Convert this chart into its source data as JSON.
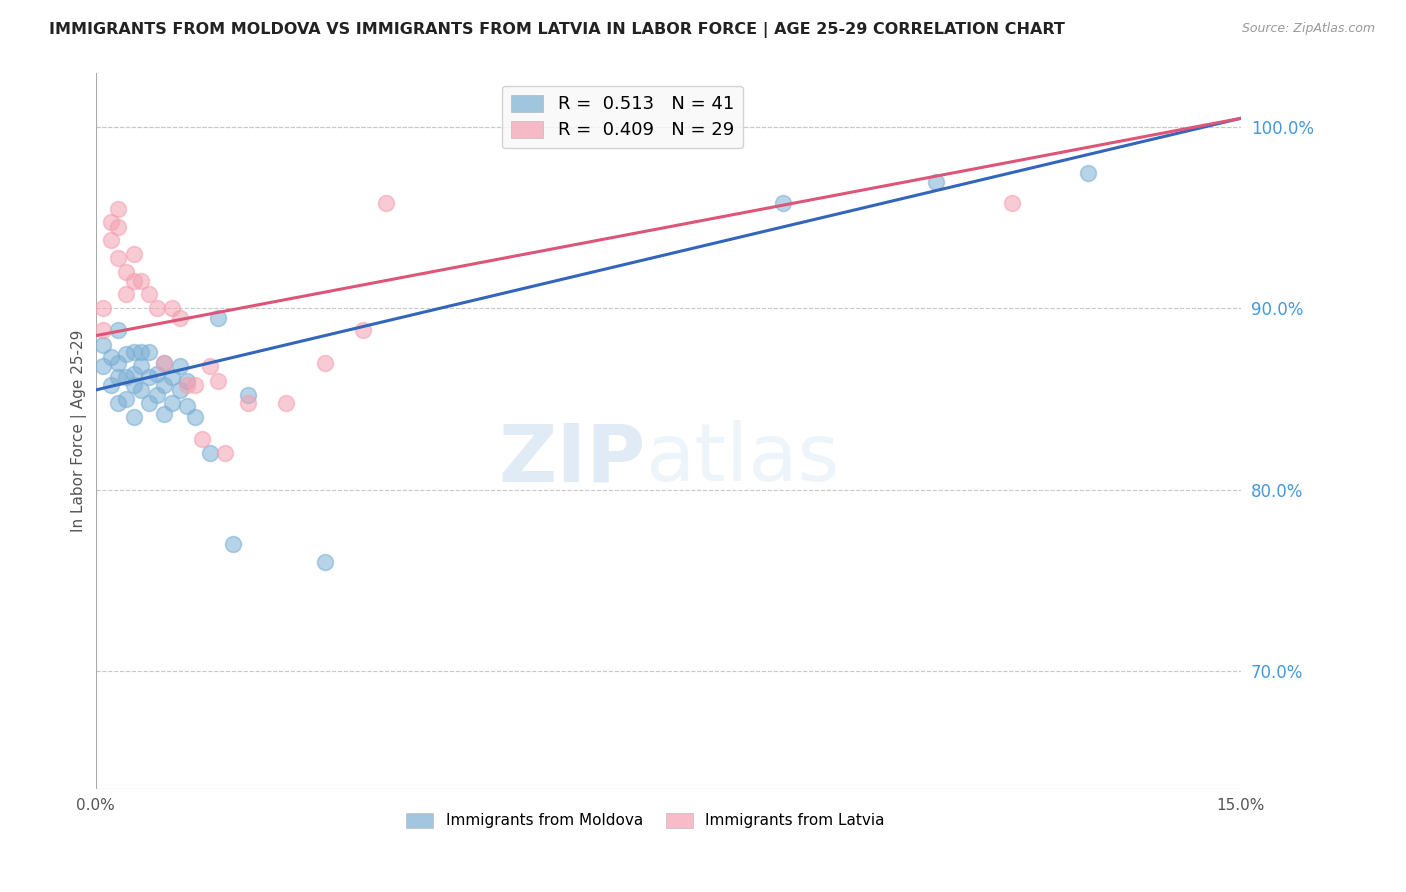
{
  "title": "IMMIGRANTS FROM MOLDOVA VS IMMIGRANTS FROM LATVIA IN LABOR FORCE | AGE 25-29 CORRELATION CHART",
  "source": "Source: ZipAtlas.com",
  "ylabel": "In Labor Force | Age 25-29",
  "xlim": [
    0.0,
    0.15
  ],
  "ylim": [
    0.635,
    1.03
  ],
  "xticks": [
    0.0,
    0.03,
    0.06,
    0.09,
    0.12,
    0.15
  ],
  "xticklabels": [
    "0.0%",
    "",
    "",
    "",
    "",
    "15.0%"
  ],
  "yticks_right": [
    0.7,
    0.8,
    0.9,
    1.0
  ],
  "ytick_right_labels": [
    "70.0%",
    "80.0%",
    "90.0%",
    "100.0%"
  ],
  "moldova_color": "#7bafd4",
  "latvia_color": "#f4a0b0",
  "moldova_line_color": "#3366bb",
  "latvia_line_color": "#dd5577",
  "moldova_R": 0.513,
  "moldova_N": 41,
  "latvia_R": 0.409,
  "latvia_N": 29,
  "moldova_scatter_x": [
    0.001,
    0.001,
    0.002,
    0.002,
    0.003,
    0.003,
    0.003,
    0.003,
    0.004,
    0.004,
    0.004,
    0.005,
    0.005,
    0.005,
    0.005,
    0.006,
    0.006,
    0.006,
    0.007,
    0.007,
    0.007,
    0.008,
    0.008,
    0.009,
    0.009,
    0.009,
    0.01,
    0.01,
    0.011,
    0.011,
    0.012,
    0.012,
    0.013,
    0.015,
    0.016,
    0.018,
    0.02,
    0.03,
    0.09,
    0.11,
    0.13
  ],
  "moldova_scatter_y": [
    0.88,
    0.868,
    0.873,
    0.858,
    0.888,
    0.87,
    0.862,
    0.848,
    0.875,
    0.862,
    0.85,
    0.876,
    0.864,
    0.858,
    0.84,
    0.876,
    0.868,
    0.855,
    0.876,
    0.862,
    0.848,
    0.864,
    0.852,
    0.87,
    0.858,
    0.842,
    0.862,
    0.848,
    0.868,
    0.855,
    0.86,
    0.846,
    0.84,
    0.82,
    0.895,
    0.77,
    0.852,
    0.76,
    0.958,
    0.97,
    0.975
  ],
  "latvia_scatter_x": [
    0.001,
    0.001,
    0.002,
    0.002,
    0.003,
    0.003,
    0.003,
    0.004,
    0.004,
    0.005,
    0.005,
    0.006,
    0.007,
    0.008,
    0.009,
    0.01,
    0.011,
    0.012,
    0.013,
    0.014,
    0.015,
    0.016,
    0.017,
    0.02,
    0.025,
    0.03,
    0.035,
    0.038,
    0.12
  ],
  "latvia_scatter_y": [
    0.9,
    0.888,
    0.948,
    0.938,
    0.955,
    0.945,
    0.928,
    0.92,
    0.908,
    0.93,
    0.915,
    0.915,
    0.908,
    0.9,
    0.87,
    0.9,
    0.895,
    0.858,
    0.858,
    0.828,
    0.868,
    0.86,
    0.82,
    0.848,
    0.848,
    0.87,
    0.888,
    0.958,
    0.958
  ],
  "watermark_zip": "ZIP",
  "watermark_atlas": "atlas",
  "background_color": "#ffffff",
  "grid_color": "#c8c8c8",
  "title_color": "#222222",
  "axis_label_color": "#555555",
  "right_tick_color": "#4499dd",
  "legend_label_moldova": "Immigrants from Moldova",
  "legend_label_latvia": "Immigrants from Latvia"
}
